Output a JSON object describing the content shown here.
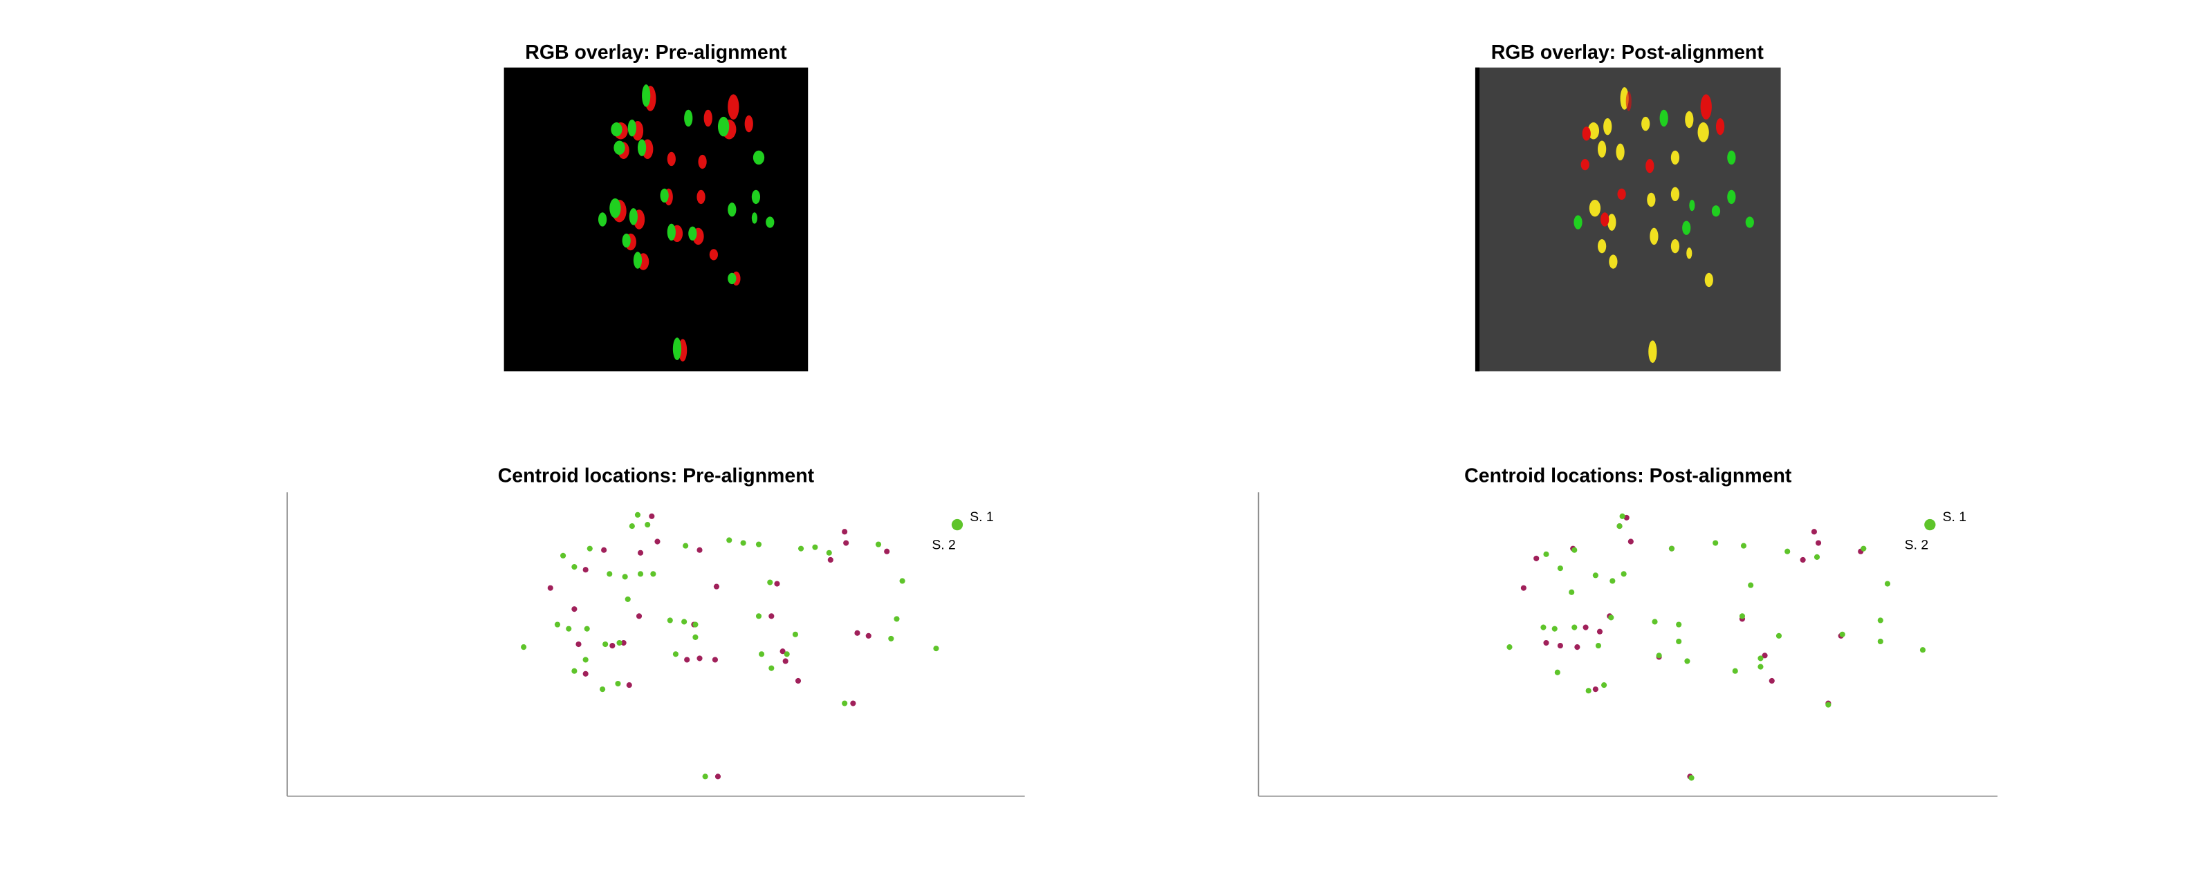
{
  "chart_data": [
    {
      "type": "image",
      "title": "RGB overlay: Pre-alignment"
    },
    {
      "type": "image",
      "title": "RGB overlay: Post-alignment"
    },
    {
      "type": "scatter",
      "title": "Centroid locations: Pre-alignment",
      "xlim": [
        0,
        524
      ],
      "ylim": [
        0,
        216
      ],
      "legend": "northeast",
      "series": [
        {
          "name": "S. 1",
          "color": "#5ec42a",
          "x": [
            249,
            256,
            245,
            283,
            314,
            324,
            335,
            365,
            375,
            385,
            420,
            196,
            204,
            215,
            229,
            240,
            251,
            260,
            242,
            343,
            437,
            335,
            272,
            282,
            290,
            433,
            168,
            192,
            200,
            213,
            226,
            236,
            276,
            290,
            361,
            355,
            337,
            344,
            212,
            204,
            224,
            235,
            429,
            461,
            396,
            297
          ],
          "y": [
            200,
            193,
            192,
            178,
            182,
            180,
            179,
            176,
            177,
            173,
            179,
            171,
            163,
            176,
            158,
            156,
            158,
            158,
            140,
            152,
            153,
            128,
            125,
            124,
            122,
            126,
            106,
            122,
            119,
            119,
            108,
            109,
            101,
            113,
            115,
            101,
            101,
            91,
            97,
            89,
            76,
            80,
            112,
            105,
            66,
            14
          ]
        },
        {
          "name": "S. 2",
          "color": "#a0205a",
          "x": [
            259,
            263,
            293,
            225,
            251,
            396,
            397,
            386,
            426,
            212,
            187,
            204,
            250,
            289,
            305,
            348,
            344,
            405,
            413,
            207,
            231,
            239,
            284,
            293,
            304,
            354,
            352,
            363,
            212,
            243,
            402,
            306
          ],
          "y": [
            199,
            181,
            175,
            175,
            173,
            188,
            180,
            168,
            174,
            161,
            148,
            133,
            128,
            122,
            149,
            151,
            128,
            116,
            114,
            108,
            107,
            109,
            97,
            98,
            97,
            96,
            103,
            82,
            87,
            79,
            66,
            14
          ]
        }
      ]
    },
    {
      "type": "scatter",
      "title": "Centroid locations: Post-alignment",
      "xlim": [
        0,
        524
      ],
      "ylim": [
        0,
        216
      ],
      "legend": "northeast",
      "series": [
        {
          "name": "S. 1",
          "color": "#5ec42a",
          "x": [
            258,
            256,
            293,
            324,
            344,
            375,
            396,
            429,
            224,
            204,
            214,
            239,
            251,
            259,
            222,
            349,
            446,
            250,
            281,
            298,
            343,
            441,
            178,
            202,
            210,
            224,
            241,
            284,
            298,
            304,
            369,
            356,
            338,
            356,
            212,
            234,
            245,
            414,
            441,
            471,
            404,
            307
          ],
          "y": [
            199,
            192,
            176,
            180,
            178,
            174,
            170,
            176,
            175,
            172,
            162,
            157,
            153,
            158,
            145,
            150,
            151,
            127,
            124,
            122,
            128,
            125,
            106,
            120,
            119,
            120,
            107,
            100,
            110,
            96,
            114,
            98,
            89,
            92,
            88,
            75,
            79,
            115,
            110,
            104,
            65,
            13
          ]
        },
        {
          "name": "S. 2",
          "color": "#a0205a",
          "x": [
            261,
            264,
            223,
            197,
            188,
            232,
            249,
            204,
            214,
            226,
            242,
            394,
            397,
            386,
            427,
            413,
            359,
            364,
            404,
            343,
            293,
            256,
            284,
            239,
            306
          ],
          "y": [
            198,
            181,
            176,
            169,
            148,
            120,
            128,
            109,
            107,
            106,
            117,
            188,
            180,
            168,
            174,
            114,
            100,
            82,
            66,
            126,
            176,
            192,
            99,
            76,
            14
          ]
        }
      ]
    }
  ]
}
